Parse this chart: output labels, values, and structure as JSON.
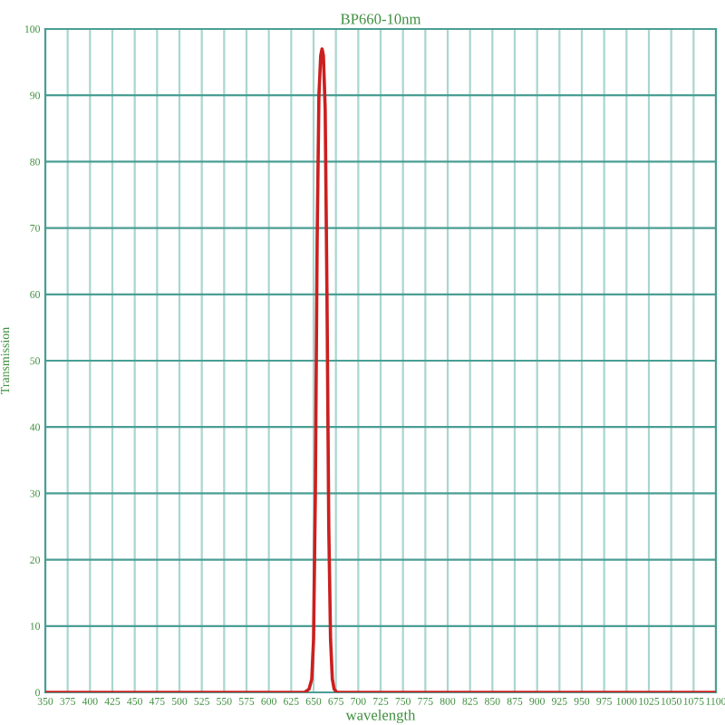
{
  "chart_data": {
    "type": "line",
    "title": "BP660-10nm",
    "xlabel": "wavelength",
    "ylabel": "Transmission",
    "series": [
      {
        "color": "#cc1f1f",
        "x": [
          350,
          640,
          645,
          648,
          650,
          652,
          654,
          656,
          658,
          659.5,
          661,
          663,
          665,
          667,
          669,
          671,
          673,
          676,
          1100
        ],
        "values": [
          0,
          0,
          0.5,
          2,
          8,
          30,
          68,
          90,
          96,
          97,
          96,
          88,
          60,
          25,
          8,
          2,
          0.5,
          0,
          0
        ]
      }
    ],
    "xlim": [
      350,
      1100
    ],
    "xticks": [
      350,
      375,
      400,
      425,
      450,
      475,
      500,
      525,
      550,
      575,
      600,
      625,
      650,
      675,
      700,
      725,
      750,
      775,
      800,
      825,
      850,
      875,
      900,
      925,
      950,
      975,
      1000,
      1025,
      1050,
      1075,
      1100
    ],
    "ylim": [
      0,
      100
    ],
    "yticks": [
      0,
      10,
      20,
      30,
      40,
      50,
      60,
      70,
      80,
      90,
      100
    ],
    "grid": true,
    "marker": "none",
    "line_style": "solid"
  }
}
